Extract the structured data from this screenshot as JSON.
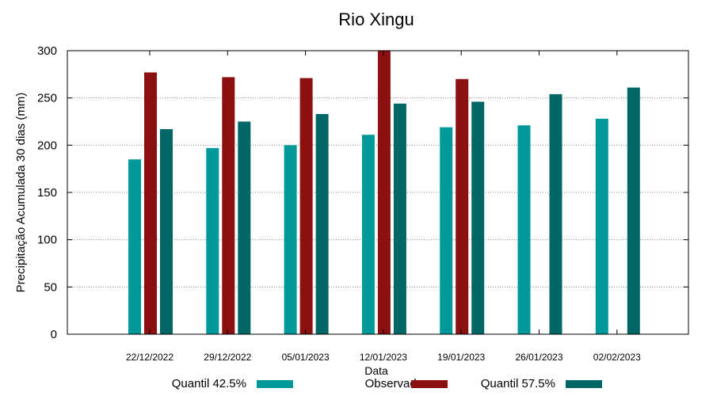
{
  "chart_data": {
    "type": "bar",
    "title": "Rio Xingu",
    "xlabel": "Data",
    "ylabel": "Precipitação Acumulada 30 dias (mm)",
    "ylim": [
      0,
      300
    ],
    "yticks": [
      0,
      50,
      100,
      150,
      200,
      250,
      300
    ],
    "grid": true,
    "legend": "bottom",
    "categories": [
      "22/12/2022",
      "29/12/2022",
      "05/01/2023",
      "12/01/2023",
      "19/01/2023",
      "26/01/2023",
      "02/02/2023"
    ],
    "series": [
      {
        "name": "Quantil 42.5%",
        "color": "#009999",
        "values": [
          185,
          197,
          200,
          211,
          219,
          221,
          228
        ]
      },
      {
        "name": "Observado",
        "color": "#8b1010",
        "values": [
          277,
          272,
          271,
          300,
          270,
          null,
          null
        ]
      },
      {
        "name": "Quantil 57.5%",
        "color": "#006666",
        "values": [
          217,
          225,
          233,
          244,
          246,
          254,
          261
        ]
      }
    ]
  }
}
